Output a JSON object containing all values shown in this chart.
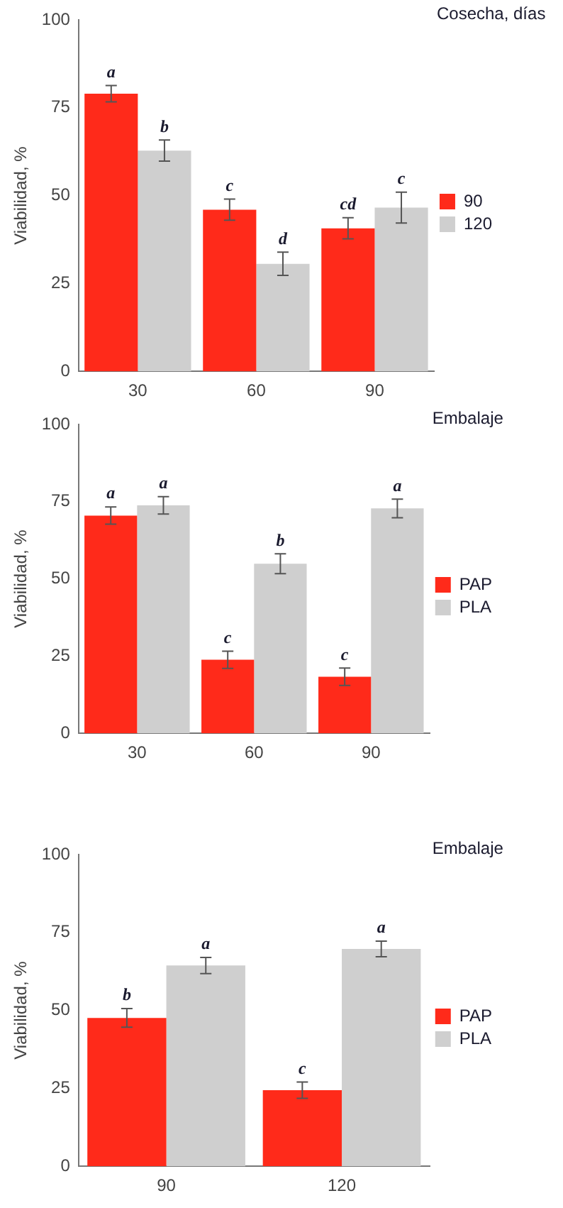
{
  "chart_data": [
    {
      "type": "bar",
      "ylabel": "Viabilidad, %",
      "legend_title": "Cosecha, días",
      "categories": [
        "30",
        "60",
        "90"
      ],
      "ylim": [
        0,
        100
      ],
      "yticks": [
        0,
        25,
        50,
        75,
        100
      ],
      "grid": false,
      "legend": "right",
      "series": [
        {
          "name": "90",
          "color": "#ff2a1a",
          "values": [
            79,
            46,
            40.7
          ],
          "errors": [
            2.3,
            3,
            3
          ],
          "value_labels": [
            "a",
            "c",
            "cd"
          ]
        },
        {
          "name": "120",
          "color": "#cfcfcf",
          "values": [
            62.8,
            30.6,
            46.6
          ],
          "errors": [
            3,
            3.3,
            4.4
          ],
          "value_labels": [
            "b",
            "d",
            "c"
          ]
        }
      ]
    },
    {
      "type": "bar",
      "ylabel": "Viabilidad, %",
      "legend_title": "Embalaje",
      "categories": [
        "30",
        "60",
        "90"
      ],
      "ylim": [
        0,
        100
      ],
      "yticks": [
        0,
        25,
        50,
        75,
        100
      ],
      "grid": false,
      "legend": "right",
      "series": [
        {
          "name": "PAP",
          "color": "#ff2a1a",
          "values": [
            70.5,
            23.8,
            18.3
          ],
          "errors": [
            2.8,
            2.8,
            2.8
          ],
          "value_labels": [
            "a",
            "c",
            "c"
          ]
        },
        {
          "name": "PLA",
          "color": "#cfcfcf",
          "values": [
            73.8,
            54.9,
            72.8
          ],
          "errors": [
            2.8,
            3.2,
            3
          ],
          "value_labels": [
            "a",
            "b",
            "a"
          ]
        }
      ]
    },
    {
      "type": "bar",
      "ylabel": "Viabilidad, %",
      "legend_title": "Embalaje",
      "categories": [
        "90",
        "120"
      ],
      "ylim": [
        0,
        100
      ],
      "yticks": [
        0,
        25,
        50,
        75,
        100
      ],
      "grid": false,
      "legend": "right",
      "series": [
        {
          "name": "PAP",
          "color": "#ff2a1a",
          "values": [
            47.6,
            24.4
          ],
          "errors": [
            3,
            2.6
          ],
          "value_labels": [
            "b",
            "c"
          ]
        },
        {
          "name": "PLA",
          "color": "#cfcfcf",
          "values": [
            64.4,
            69.7
          ],
          "errors": [
            2.6,
            2.5
          ],
          "value_labels": [
            "a",
            "a"
          ]
        }
      ]
    }
  ]
}
